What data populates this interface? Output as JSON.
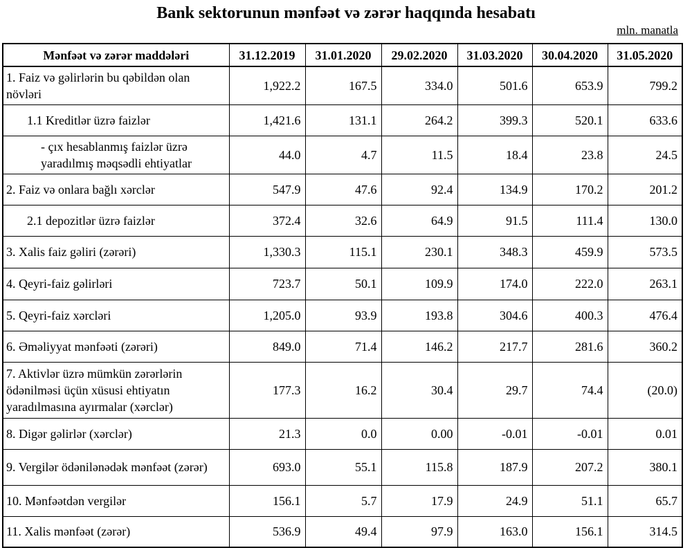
{
  "header": {
    "title": "Bank sektorunun mənfəət və zərər haqqında hesabatı",
    "unit": "mln. manatla"
  },
  "table": {
    "columns": [
      "Mənfəət və zərər maddələri",
      "31.12.2019",
      "31.01.2020",
      "29.02.2020",
      "31.03.2020",
      "30.04.2020",
      "31.05.2020"
    ],
    "rows": [
      [
        "1. Faiz və gəlirlərin bu qəbildən olan növləri",
        "1,922.2",
        "167.5",
        "334.0",
        "501.6",
        "653.9",
        "799.2"
      ],
      [
        "1.1 Kreditlər üzrə faizlər",
        "1,421.6",
        "131.1",
        "264.2",
        "399.3",
        "520.1",
        "633.6"
      ],
      [
        "-  çıx hesablanmış faizlər üzrə yaradılmış məqsədli ehtiyatlar",
        "44.0",
        "4.7",
        "11.5",
        "18.4",
        "23.8",
        "24.5"
      ],
      [
        "2. Faiz və onlara bağlı xərclər",
        "547.9",
        "47.6",
        "92.4",
        "134.9",
        "170.2",
        "201.2"
      ],
      [
        "2.1 depozitlər üzrə faizlər",
        "372.4",
        "32.6",
        "64.9",
        "91.5",
        "111.4",
        "130.0"
      ],
      [
        "3. Xalis faiz gəliri (zərəri)",
        "1,330.3",
        "115.1",
        "230.1",
        "348.3",
        "459.9",
        "573.5"
      ],
      [
        "4. Qeyri-faiz gəlirləri",
        "723.7",
        "50.1",
        "109.9",
        "174.0",
        "222.0",
        "263.1"
      ],
      [
        "5. Qeyri-faiz xərcləri",
        "1,205.0",
        "93.9",
        "193.8",
        "304.6",
        "400.3",
        "476.4"
      ],
      [
        "6. Əməliyyat mənfəəti (zərəri)",
        "849.0",
        "71.4",
        "146.2",
        "217.7",
        "281.6",
        "360.2"
      ],
      [
        "7. Aktivlər üzrə mümkün zərərlərin ödənilməsi üçün xüsusi ehtiyatın yaradılmasına ayırmalar (xərclər)",
        "177.3",
        "16.2",
        "30.4",
        "29.7",
        "74.4",
        "(20.0)"
      ],
      [
        "8. Digər gəlirlər (xərclər)",
        "21.3",
        "0.0",
        "0.00",
        "-0.01",
        "-0.01",
        "0.01"
      ],
      [
        "9. Vergilər ödənilənədək mənfəət (zərər)",
        "693.0",
        "55.1",
        "115.8",
        "187.9",
        "207.2",
        "380.1"
      ],
      [
        "10. Mənfəətdən vergilər",
        "156.1",
        "5.7",
        "17.9",
        "24.9",
        "51.1",
        "65.7"
      ],
      [
        "11. Xalis mənfəət (zərər)",
        "536.9",
        "49.4",
        "97.9",
        "163.0",
        "156.1",
        "314.5"
      ]
    ]
  }
}
